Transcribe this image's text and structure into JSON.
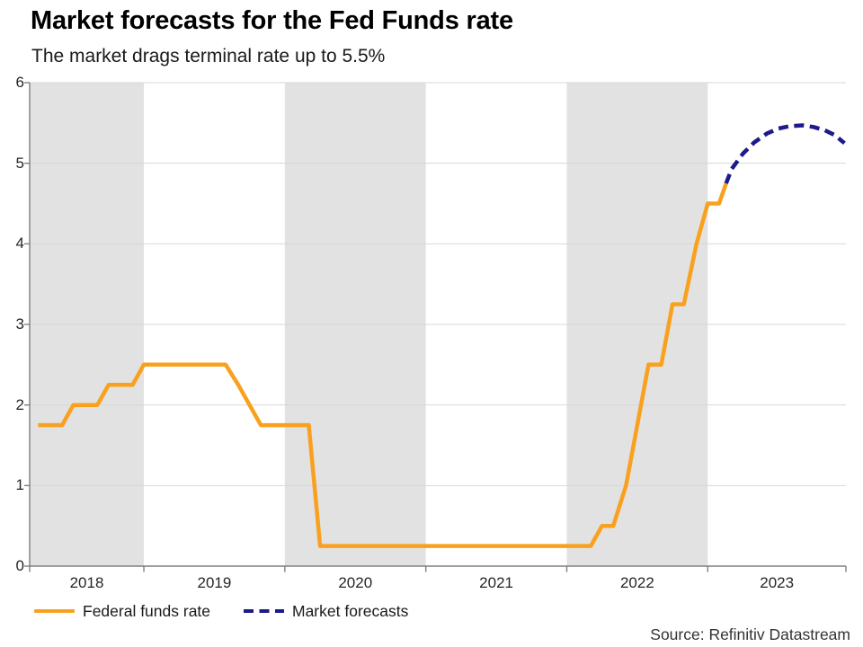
{
  "header": {
    "title": "Market forecasts for the Fed Funds rate",
    "subtitle": "The market drags terminal rate up to 5.5%"
  },
  "chart_data": {
    "type": "line",
    "title": "Market forecasts for the Fed Funds rate",
    "subtitle": "The market drags terminal rate up to 5.5%",
    "xlabel": "",
    "ylabel": "",
    "xlim": [
      2018.19,
      2023.98
    ],
    "ylim": [
      0,
      6
    ],
    "y_ticks": [
      0,
      1,
      2,
      3,
      4,
      5,
      6
    ],
    "x_year_ticks": [
      2019,
      2020,
      2021,
      2022,
      2023
    ],
    "x_year_labels": [
      {
        "label": "2018",
        "year": 2018
      },
      {
        "label": "2019",
        "year": 2019
      },
      {
        "label": "2020",
        "year": 2020
      },
      {
        "label": "2021",
        "year": 2021
      },
      {
        "label": "2022",
        "year": 2022
      },
      {
        "label": "2023",
        "year": 2023
      }
    ],
    "shaded_years": [
      2018,
      2020,
      2022
    ],
    "grid": true,
    "legend_position": "bottom",
    "series": [
      {
        "name": "Federal funds rate",
        "style": "solid",
        "color": "#F9A11E",
        "points": [
          [
            2018.25,
            1.75
          ],
          [
            2018.42,
            1.75
          ],
          [
            2018.5,
            2.0
          ],
          [
            2018.67,
            2.0
          ],
          [
            2018.75,
            2.25
          ],
          [
            2018.92,
            2.25
          ],
          [
            2019.0,
            2.5
          ],
          [
            2019.58,
            2.5
          ],
          [
            2019.67,
            2.25
          ],
          [
            2019.75,
            2.0
          ],
          [
            2019.83,
            1.75
          ],
          [
            2020.17,
            1.75
          ],
          [
            2020.25,
            0.25
          ],
          [
            2022.17,
            0.25
          ],
          [
            2022.25,
            0.5
          ],
          [
            2022.33,
            0.5
          ],
          [
            2022.42,
            1.0
          ],
          [
            2022.5,
            1.75
          ],
          [
            2022.58,
            2.5
          ],
          [
            2022.67,
            2.5
          ],
          [
            2022.75,
            3.25
          ],
          [
            2022.83,
            3.25
          ],
          [
            2022.92,
            4.0
          ],
          [
            2023.0,
            4.5
          ],
          [
            2023.08,
            4.5
          ],
          [
            2023.13,
            4.75
          ]
        ]
      },
      {
        "name": "Market forecasts",
        "style": "dashed",
        "color": "#1B1B8A",
        "points": [
          [
            2023.13,
            4.75
          ],
          [
            2023.17,
            4.93
          ],
          [
            2023.25,
            5.12
          ],
          [
            2023.33,
            5.26
          ],
          [
            2023.42,
            5.37
          ],
          [
            2023.5,
            5.43
          ],
          [
            2023.58,
            5.46
          ],
          [
            2023.67,
            5.47
          ],
          [
            2023.75,
            5.45
          ],
          [
            2023.83,
            5.41
          ],
          [
            2023.9,
            5.35
          ],
          [
            2023.97,
            5.25
          ]
        ]
      }
    ]
  },
  "legend": {
    "items": [
      {
        "label": "Federal funds rate",
        "color": "#F9A11E",
        "style": "solid"
      },
      {
        "label": "Market forecasts",
        "color": "#1B1B8A",
        "style": "dashed"
      }
    ]
  },
  "footer": {
    "source": "Source: Refinitiv Datastream"
  },
  "colors": {
    "band": "#E2E2E2",
    "gridline": "#D7D7D7",
    "axis": "#7F7F7F",
    "actual_line": "#F9A11E",
    "forecast_line": "#1B1B8A"
  }
}
